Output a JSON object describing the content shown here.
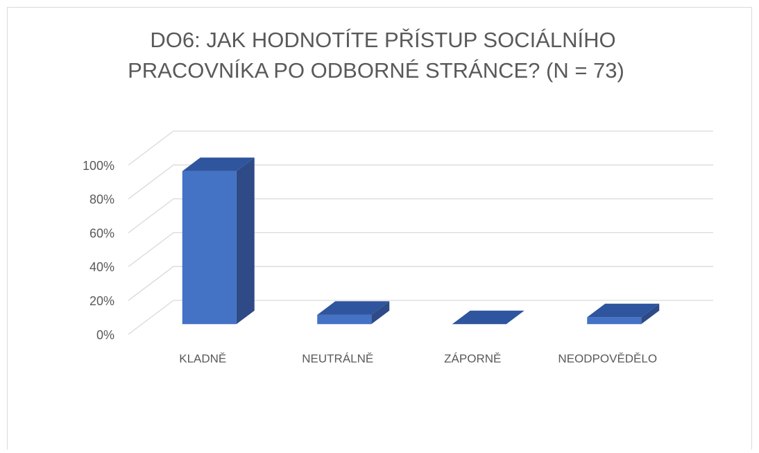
{
  "chart_data": {
    "type": "bar3d",
    "title": [
      "DO6: JAK HODNOTÍTE PŘÍSTUP SOCIÁLNÍHO",
      "PRACOVNÍKA PO ODBORNÉ STRÁNCE?  (N = 73)"
    ],
    "categories": [
      "KLADNĚ",
      "NEUTRÁLNĚ",
      "ZÁPORNĚ",
      "NEODPOVĚDĚLO"
    ],
    "values": [
      90.4,
      5.5,
      0,
      4.1
    ],
    "color": "#4472c4",
    "ylim": [
      0,
      100
    ],
    "yticks": [
      {
        "value": 0,
        "label": "0%"
      },
      {
        "value": 20,
        "label": "20%"
      },
      {
        "value": 40,
        "label": "40%"
      },
      {
        "value": 60,
        "label": "60%"
      },
      {
        "value": 80,
        "label": "80%"
      },
      {
        "value": 100,
        "label": "100%"
      }
    ],
    "grid": true
  }
}
